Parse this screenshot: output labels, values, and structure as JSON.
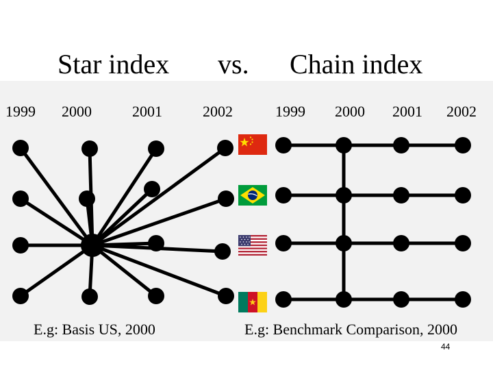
{
  "title": {
    "left": "Star index",
    "middle": "vs.",
    "right": "Chain index"
  },
  "star": {
    "years": [
      "1999",
      "2000",
      "2001",
      "2002"
    ],
    "caption": "E.g: Basis US, 2000"
  },
  "chain": {
    "years": [
      "1999",
      "2000",
      "2001",
      "2002"
    ],
    "caption": "E.g: Benchmark Comparison, 2000"
  },
  "flags": [
    {
      "country": "China",
      "icon": "china-flag-icon"
    },
    {
      "country": "Brazil",
      "icon": "brazil-flag-icon"
    },
    {
      "country": "United States",
      "icon": "usa-flag-icon"
    },
    {
      "country": "Cameroon",
      "icon": "cameroon-flag-icon"
    }
  ],
  "colors": {
    "node": "#000000",
    "edge": "#000000",
    "panel_background": "#f2f2f2"
  },
  "page_number": "44"
}
